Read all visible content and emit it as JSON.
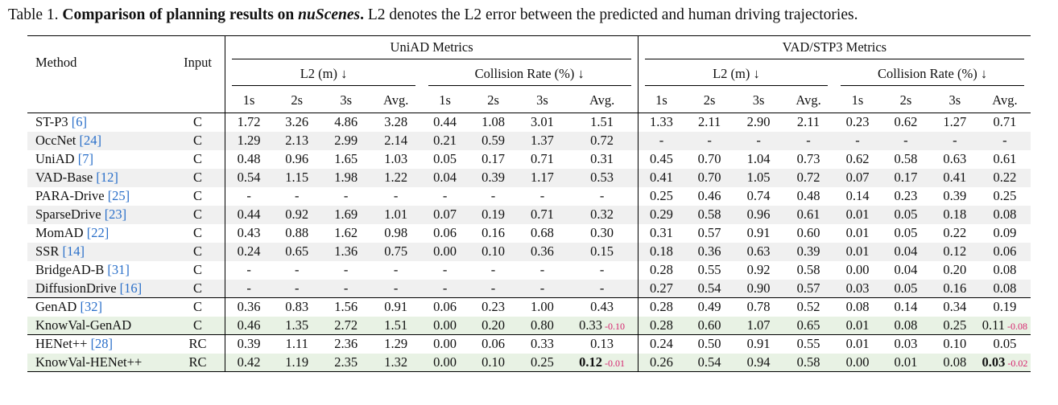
{
  "caption": {
    "label": "Table 1.",
    "bold_lead": "Comparison of planning results on ",
    "bold_em": "nuScenes",
    "bold_end": ".",
    "rest": " L2 denotes the L2 error between the predicted and human driving trajectories."
  },
  "header": {
    "method": "Method",
    "input": "Input",
    "uniad_metrics": "UniAD Metrics",
    "vad_metrics": "VAD/STP3 Metrics",
    "l2": "L2 (m) ↓",
    "collision": "Collision Rate (%) ↓",
    "cols": [
      "1s",
      "2s",
      "3s",
      "Avg."
    ]
  },
  "groups": [
    {
      "rows": [
        {
          "name": "ST-P3",
          "cite": "[6]",
          "input": "C",
          "shade": false,
          "uniad_l2": [
            "1.72",
            "3.26",
            "4.86",
            "3.28"
          ],
          "uniad_col": [
            "0.44",
            "1.08",
            "3.01",
            "1.51"
          ],
          "vad_l2": [
            "1.33",
            "2.11",
            "2.90",
            "2.11"
          ],
          "vad_col": [
            "0.23",
            "0.62",
            "1.27",
            "0.71"
          ]
        },
        {
          "name": "OccNet",
          "cite": "[24]",
          "input": "C",
          "shade": true,
          "uniad_l2": [
            "1.29",
            "2.13",
            "2.99",
            "2.14"
          ],
          "uniad_col": [
            "0.21",
            "0.59",
            "1.37",
            "0.72"
          ],
          "vad_l2": [
            "-",
            "-",
            "-",
            "-"
          ],
          "vad_col": [
            "-",
            "-",
            "-",
            "-"
          ]
        },
        {
          "name": "UniAD",
          "cite": "[7]",
          "input": "C",
          "shade": false,
          "uniad_l2": [
            "0.48",
            "0.96",
            "1.65",
            "1.03"
          ],
          "uniad_col": [
            "0.05",
            "0.17",
            "0.71",
            "0.31"
          ],
          "vad_l2": [
            "0.45",
            "0.70",
            "1.04",
            "0.73"
          ],
          "vad_col": [
            "0.62",
            "0.58",
            "0.63",
            "0.61"
          ]
        },
        {
          "name": "VAD-Base",
          "cite": "[12]",
          "input": "C",
          "shade": true,
          "uniad_l2": [
            "0.54",
            "1.15",
            "1.98",
            "1.22"
          ],
          "uniad_col": [
            "0.04",
            "0.39",
            "1.17",
            "0.53"
          ],
          "vad_l2": [
            "0.41",
            "0.70",
            "1.05",
            "0.72"
          ],
          "vad_col": [
            "0.07",
            "0.17",
            "0.41",
            "0.22"
          ]
        },
        {
          "name": "PARA-Drive",
          "cite": "[25]",
          "input": "C",
          "shade": false,
          "uniad_l2": [
            "-",
            "-",
            "-",
            "-"
          ],
          "uniad_col": [
            "-",
            "-",
            "-",
            "-"
          ],
          "vad_l2": [
            "0.25",
            "0.46",
            "0.74",
            "0.48"
          ],
          "vad_col": [
            "0.14",
            "0.23",
            "0.39",
            "0.25"
          ]
        },
        {
          "name": "SparseDrive",
          "cite": "[23]",
          "input": "C",
          "shade": true,
          "uniad_l2": [
            "0.44",
            "0.92",
            "1.69",
            "1.01"
          ],
          "uniad_col": [
            "0.07",
            "0.19",
            "0.71",
            "0.32"
          ],
          "vad_l2": [
            "0.29",
            "0.58",
            "0.96",
            "0.61"
          ],
          "vad_col": [
            "0.01",
            "0.05",
            "0.18",
            "0.08"
          ]
        },
        {
          "name": "MomAD",
          "cite": "[22]",
          "input": "C",
          "shade": false,
          "uniad_l2": [
            "0.43",
            "0.88",
            "1.62",
            "0.98"
          ],
          "uniad_col": [
            "0.06",
            "0.16",
            "0.68",
            "0.30"
          ],
          "vad_l2": [
            "0.31",
            "0.57",
            "0.91",
            "0.60"
          ],
          "vad_col": [
            "0.01",
            "0.05",
            "0.22",
            "0.09"
          ]
        },
        {
          "name": "SSR",
          "cite": "[14]",
          "input": "C",
          "shade": true,
          "uniad_l2": [
            "0.24",
            "0.65",
            "1.36",
            "0.75"
          ],
          "uniad_col": [
            "0.00",
            "0.10",
            "0.36",
            "0.15"
          ],
          "vad_l2": [
            "0.18",
            "0.36",
            "0.63",
            "0.39"
          ],
          "vad_col": [
            "0.01",
            "0.04",
            "0.12",
            "0.06"
          ]
        },
        {
          "name": "BridgeAD-B",
          "cite": "[31]",
          "input": "C",
          "shade": false,
          "uniad_l2": [
            "-",
            "-",
            "-",
            "-"
          ],
          "uniad_col": [
            "-",
            "-",
            "-",
            "-"
          ],
          "vad_l2": [
            "0.28",
            "0.55",
            "0.92",
            "0.58"
          ],
          "vad_col": [
            "0.00",
            "0.04",
            "0.20",
            "0.08"
          ]
        },
        {
          "name": "DiffusionDrive",
          "cite": "[16]",
          "input": "C",
          "shade": true,
          "uniad_l2": [
            "-",
            "-",
            "-",
            "-"
          ],
          "uniad_col": [
            "-",
            "-",
            "-",
            "-"
          ],
          "vad_l2": [
            "0.27",
            "0.54",
            "0.90",
            "0.57"
          ],
          "vad_col": [
            "0.03",
            "0.05",
            "0.16",
            "0.08"
          ]
        }
      ]
    },
    {
      "rows": [
        {
          "name": "GenAD",
          "cite": "[32]",
          "input": "C",
          "shade": false,
          "uniad_l2": [
            "0.36",
            "0.83",
            "1.56",
            "0.91"
          ],
          "uniad_col": [
            "0.06",
            "0.23",
            "1.00",
            "0.43"
          ],
          "vad_l2": [
            "0.28",
            "0.49",
            "0.78",
            "0.52"
          ],
          "vad_col": [
            "0.08",
            "0.14",
            "0.34",
            "0.19"
          ]
        },
        {
          "name": "KnowVal-GenAD",
          "cite": "",
          "input": "C",
          "green": true,
          "uniad_l2": [
            "0.46",
            "1.35",
            "2.72",
            "1.51"
          ],
          "uniad_col": [
            "0.00",
            "0.20",
            "0.80",
            "0.33"
          ],
          "uniad_delta": "-0.10",
          "uniad_bold": false,
          "vad_l2": [
            "0.28",
            "0.60",
            "1.07",
            "0.65"
          ],
          "vad_col": [
            "0.01",
            "0.08",
            "0.25",
            "0.11"
          ],
          "vad_delta": "-0.08",
          "vad_bold": false
        }
      ]
    },
    {
      "rows": [
        {
          "name": "HENet++",
          "cite": "[28]",
          "input": "RC",
          "shade": false,
          "uniad_l2": [
            "0.39",
            "1.11",
            "2.36",
            "1.29"
          ],
          "uniad_col": [
            "0.00",
            "0.06",
            "0.33",
            "0.13"
          ],
          "vad_l2": [
            "0.24",
            "0.50",
            "0.91",
            "0.55"
          ],
          "vad_col": [
            "0.01",
            "0.03",
            "0.10",
            "0.05"
          ]
        },
        {
          "name": "KnowVal-HENet++",
          "cite": "",
          "input": "RC",
          "green": true,
          "uniad_l2": [
            "0.42",
            "1.19",
            "2.35",
            "1.32"
          ],
          "uniad_col": [
            "0.00",
            "0.10",
            "0.25",
            "0.12"
          ],
          "uniad_delta": "-0.01",
          "uniad_bold": true,
          "vad_l2": [
            "0.26",
            "0.54",
            "0.94",
            "0.58"
          ],
          "vad_col": [
            "0.00",
            "0.01",
            "0.08",
            "0.03"
          ],
          "vad_delta": "-0.02",
          "vad_bold": true
        }
      ]
    }
  ]
}
